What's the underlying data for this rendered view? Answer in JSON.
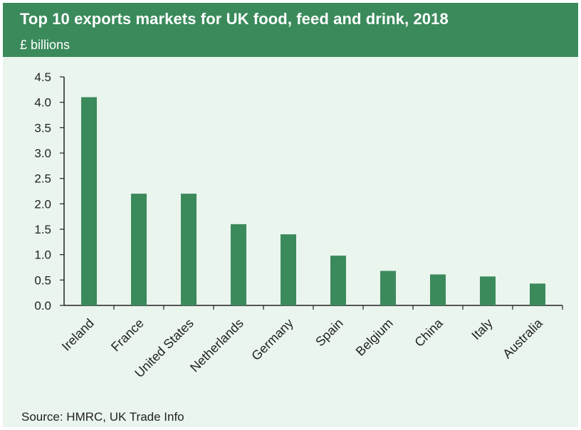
{
  "header": {
    "title": "Top 10 exports markets for UK food, feed and drink, 2018",
    "unit": "£ billions"
  },
  "source": "Source: HMRC, UK Trade Info",
  "colors": {
    "header_bg": "#3b8a5c",
    "plot_bg": "#eaf5ee",
    "bar": "#3b8a5c",
    "axis": "#222222"
  },
  "chart_data": {
    "type": "bar",
    "title": "Top 10 exports markets for UK food, feed and drink, 2018",
    "ylabel": "£ billions",
    "xlabel": "",
    "categories": [
      "Ireland",
      "France",
      "United States",
      "Netherlands",
      "Germany",
      "Spain",
      "Belgium",
      "China",
      "Italy",
      "Australia"
    ],
    "values": [
      4.1,
      2.2,
      2.2,
      1.6,
      1.4,
      0.98,
      0.68,
      0.61,
      0.57,
      0.43
    ],
    "ylim": [
      0,
      4.5
    ],
    "yticks": [
      "0.0",
      "0.5",
      "1.0",
      "1.5",
      "2.0",
      "2.5",
      "3.0",
      "3.5",
      "4.0",
      "4.5"
    ],
    "grid": false,
    "legend": "none"
  }
}
